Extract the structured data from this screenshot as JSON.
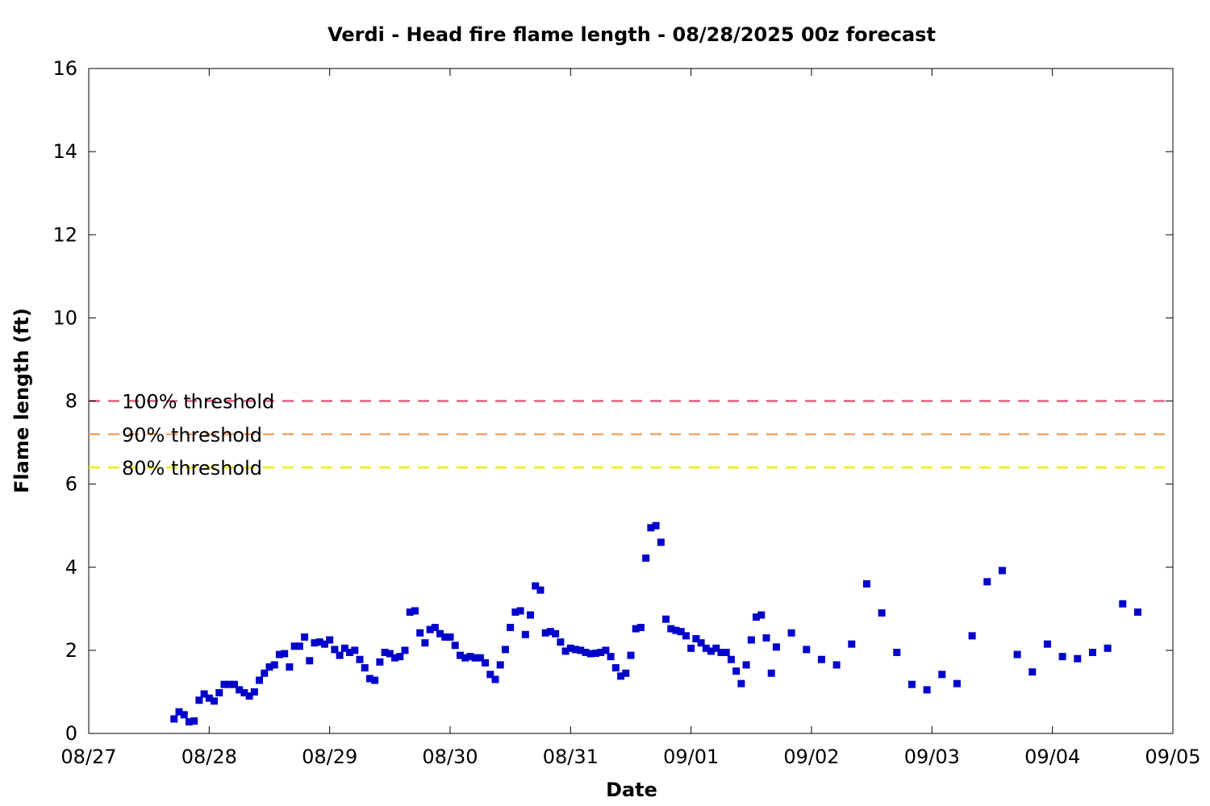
{
  "chart_data": {
    "type": "scatter",
    "title": "Verdi - Head fire flame length - 08/28/2025 00z forecast",
    "xlabel": "Date",
    "ylabel": "Flame length (ft)",
    "xlim": [
      "08/27",
      "09/05"
    ],
    "ylim": [
      0,
      16
    ],
    "x_ticks": [
      "08/27",
      "08/28",
      "08/29",
      "08/30",
      "08/31",
      "09/01",
      "09/02",
      "09/03",
      "09/04",
      "09/05"
    ],
    "y_ticks": [
      0,
      2,
      4,
      6,
      8,
      10,
      12,
      14,
      16
    ],
    "grid": false,
    "reference_lines": [
      {
        "name": "100% threshold",
        "y": 8.0,
        "color": "#e0607e",
        "style": "dashed"
      },
      {
        "name": "90% threshold",
        "y": 7.2,
        "color": "#f4a46a",
        "style": "dashed"
      },
      {
        "name": "80% threshold",
        "y": 6.4,
        "color": "#eeee00",
        "style": "dashed"
      }
    ],
    "series": [
      {
        "color": "#0000cc",
        "marker": "square",
        "points": [
          [
            "08/27 17:00",
            0.35
          ],
          [
            "08/27 18:00",
            0.52
          ],
          [
            "08/27 19:00",
            0.45
          ],
          [
            "08/27 20:00",
            0.28
          ],
          [
            "08/27 21:00",
            0.3
          ],
          [
            "08/27 22:00",
            0.8
          ],
          [
            "08/27 23:00",
            0.95
          ],
          [
            "08/28 00:00",
            0.85
          ],
          [
            "08/28 01:00",
            0.78
          ],
          [
            "08/28 02:00",
            0.98
          ],
          [
            "08/28 03:00",
            1.18
          ],
          [
            "08/28 04:00",
            1.18
          ],
          [
            "08/28 05:00",
            1.18
          ],
          [
            "08/28 06:00",
            1.05
          ],
          [
            "08/28 07:00",
            0.98
          ],
          [
            "08/28 08:00",
            0.9
          ],
          [
            "08/28 09:00",
            1.0
          ],
          [
            "08/28 10:00",
            1.28
          ],
          [
            "08/28 11:00",
            1.45
          ],
          [
            "08/28 12:00",
            1.6
          ],
          [
            "08/28 13:00",
            1.65
          ],
          [
            "08/28 14:00",
            1.9
          ],
          [
            "08/28 15:00",
            1.92
          ],
          [
            "08/28 16:00",
            1.6
          ],
          [
            "08/28 17:00",
            2.1
          ],
          [
            "08/28 18:00",
            2.1
          ],
          [
            "08/28 19:00",
            2.32
          ],
          [
            "08/28 20:00",
            1.75
          ],
          [
            "08/28 21:00",
            2.18
          ],
          [
            "08/28 22:00",
            2.2
          ],
          [
            "08/28 23:00",
            2.15
          ],
          [
            "08/29 00:00",
            2.25
          ],
          [
            "08/29 01:00",
            2.02
          ],
          [
            "08/29 02:00",
            1.88
          ],
          [
            "08/29 03:00",
            2.05
          ],
          [
            "08/29 04:00",
            1.95
          ],
          [
            "08/29 05:00",
            2.0
          ],
          [
            "08/29 06:00",
            1.78
          ],
          [
            "08/29 07:00",
            1.58
          ],
          [
            "08/29 08:00",
            1.32
          ],
          [
            "08/29 09:00",
            1.28
          ],
          [
            "08/29 10:00",
            1.72
          ],
          [
            "08/29 11:00",
            1.95
          ],
          [
            "08/29 12:00",
            1.92
          ],
          [
            "08/29 13:00",
            1.82
          ],
          [
            "08/29 14:00",
            1.85
          ],
          [
            "08/29 15:00",
            2.0
          ],
          [
            "08/29 16:00",
            2.92
          ],
          [
            "08/29 17:00",
            2.95
          ],
          [
            "08/29 18:00",
            2.42
          ],
          [
            "08/29 19:00",
            2.18
          ],
          [
            "08/29 20:00",
            2.5
          ],
          [
            "08/29 21:00",
            2.55
          ],
          [
            "08/29 22:00",
            2.4
          ],
          [
            "08/29 23:00",
            2.32
          ],
          [
            "08/30 00:00",
            2.32
          ],
          [
            "08/30 01:00",
            2.12
          ],
          [
            "08/30 02:00",
            1.88
          ],
          [
            "08/30 03:00",
            1.82
          ],
          [
            "08/30 04:00",
            1.85
          ],
          [
            "08/30 05:00",
            1.82
          ],
          [
            "08/30 06:00",
            1.82
          ],
          [
            "08/30 07:00",
            1.7
          ],
          [
            "08/30 08:00",
            1.42
          ],
          [
            "08/30 09:00",
            1.3
          ],
          [
            "08/30 10:00",
            1.65
          ],
          [
            "08/30 11:00",
            2.02
          ],
          [
            "08/30 12:00",
            2.55
          ],
          [
            "08/30 13:00",
            2.92
          ],
          [
            "08/30 14:00",
            2.95
          ],
          [
            "08/30 15:00",
            2.38
          ],
          [
            "08/30 16:00",
            2.85
          ],
          [
            "08/30 17:00",
            3.55
          ],
          [
            "08/30 18:00",
            3.45
          ],
          [
            "08/30 19:00",
            2.42
          ],
          [
            "08/30 20:00",
            2.45
          ],
          [
            "08/30 21:00",
            2.4
          ],
          [
            "08/30 22:00",
            2.2
          ],
          [
            "08/30 23:00",
            1.98
          ],
          [
            "08/31 00:00",
            2.05
          ],
          [
            "08/31 01:00",
            2.02
          ],
          [
            "08/31 02:00",
            2.0
          ],
          [
            "08/31 03:00",
            1.95
          ],
          [
            "08/31 04:00",
            1.92
          ],
          [
            "08/31 05:00",
            1.93
          ],
          [
            "08/31 06:00",
            1.95
          ],
          [
            "08/31 07:00",
            2.0
          ],
          [
            "08/31 08:00",
            1.85
          ],
          [
            "08/31 09:00",
            1.58
          ],
          [
            "08/31 10:00",
            1.38
          ],
          [
            "08/31 11:00",
            1.45
          ],
          [
            "08/31 12:00",
            1.88
          ],
          [
            "08/31 13:00",
            2.52
          ],
          [
            "08/31 14:00",
            2.55
          ],
          [
            "08/31 15:00",
            4.22
          ],
          [
            "08/31 16:00",
            4.95
          ],
          [
            "08/31 17:00",
            5.0
          ],
          [
            "08/31 18:00",
            4.6
          ],
          [
            "08/31 19:00",
            2.75
          ],
          [
            "08/31 20:00",
            2.52
          ],
          [
            "08/31 21:00",
            2.48
          ],
          [
            "08/31 22:00",
            2.45
          ],
          [
            "08/31 23:00",
            2.35
          ],
          [
            "09/01 00:00",
            2.05
          ],
          [
            "09/01 01:00",
            2.28
          ],
          [
            "09/01 02:00",
            2.18
          ],
          [
            "09/01 03:00",
            2.05
          ],
          [
            "09/01 04:00",
            1.98
          ],
          [
            "09/01 05:00",
            2.05
          ],
          [
            "09/01 06:00",
            1.95
          ],
          [
            "09/01 07:00",
            1.95
          ],
          [
            "09/01 08:00",
            1.78
          ],
          [
            "09/01 09:00",
            1.5
          ],
          [
            "09/01 10:00",
            1.2
          ],
          [
            "09/01 11:00",
            1.65
          ],
          [
            "09/01 12:00",
            2.25
          ],
          [
            "09/01 13:00",
            2.8
          ],
          [
            "09/01 14:00",
            2.85
          ],
          [
            "09/01 15:00",
            2.3
          ],
          [
            "09/01 16:00",
            1.45
          ],
          [
            "09/01 17:00",
            2.08
          ],
          [
            "09/01 20:00",
            2.42
          ],
          [
            "09/01 23:00",
            2.02
          ],
          [
            "09/02 02:00",
            1.78
          ],
          [
            "09/02 05:00",
            1.65
          ],
          [
            "09/02 08:00",
            2.15
          ],
          [
            "09/02 11:00",
            3.6
          ],
          [
            "09/02 14:00",
            2.9
          ],
          [
            "09/02 17:00",
            1.95
          ],
          [
            "09/02 20:00",
            1.18
          ],
          [
            "09/02 23:00",
            1.05
          ],
          [
            "09/03 02:00",
            1.42
          ],
          [
            "09/03 05:00",
            1.2
          ],
          [
            "09/03 08:00",
            2.35
          ],
          [
            "09/03 11:00",
            3.65
          ],
          [
            "09/03 14:00",
            3.92
          ],
          [
            "09/03 17:00",
            1.9
          ],
          [
            "09/03 20:00",
            1.48
          ],
          [
            "09/03 23:00",
            2.15
          ],
          [
            "09/04 02:00",
            1.85
          ],
          [
            "09/04 05:00",
            1.8
          ],
          [
            "09/04 08:00",
            1.95
          ],
          [
            "09/04 11:00",
            2.05
          ],
          [
            "09/04 14:00",
            3.12
          ],
          [
            "09/04 17:00",
            2.92
          ]
        ]
      }
    ]
  }
}
